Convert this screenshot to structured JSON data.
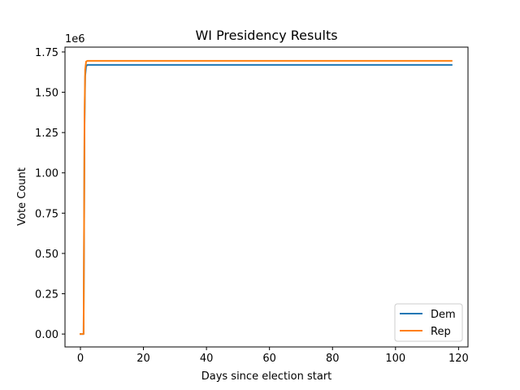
{
  "chart_data": {
    "type": "line",
    "title": "WI Presidency Results",
    "xlabel": "Days since election start",
    "ylabel": "Vote Count",
    "y_offset_label": "1e6",
    "xlim": [
      -4.9,
      123
    ],
    "ylim": [
      -80000,
      1780000
    ],
    "x_ticks": [
      0,
      20,
      40,
      60,
      80,
      100,
      120
    ],
    "y_ticks": [
      0,
      250000,
      500000,
      750000,
      1000000,
      1250000,
      1500000,
      1750000
    ],
    "y_tick_labels": [
      "0.00",
      "0.25",
      "0.50",
      "0.75",
      "1.00",
      "1.25",
      "1.50",
      "1.75"
    ],
    "grid": false,
    "legend_position": "lower-right",
    "series": [
      {
        "name": "Dem",
        "color": "#1f77b4",
        "points": [
          [
            0,
            0
          ],
          [
            1.0,
            0
          ],
          [
            1.15,
            600000
          ],
          [
            1.3,
            1300000
          ],
          [
            1.5,
            1600000
          ],
          [
            1.8,
            1660000
          ],
          [
            2.2,
            1670000
          ],
          [
            117.8,
            1670000
          ]
        ]
      },
      {
        "name": "Rep",
        "color": "#ff7f0e",
        "points": [
          [
            0,
            0
          ],
          [
            1.0,
            0
          ],
          [
            1.15,
            650000
          ],
          [
            1.3,
            1350000
          ],
          [
            1.5,
            1640000
          ],
          [
            1.8,
            1690000
          ],
          [
            2.2,
            1695000
          ],
          [
            117.8,
            1695000
          ]
        ]
      }
    ]
  }
}
